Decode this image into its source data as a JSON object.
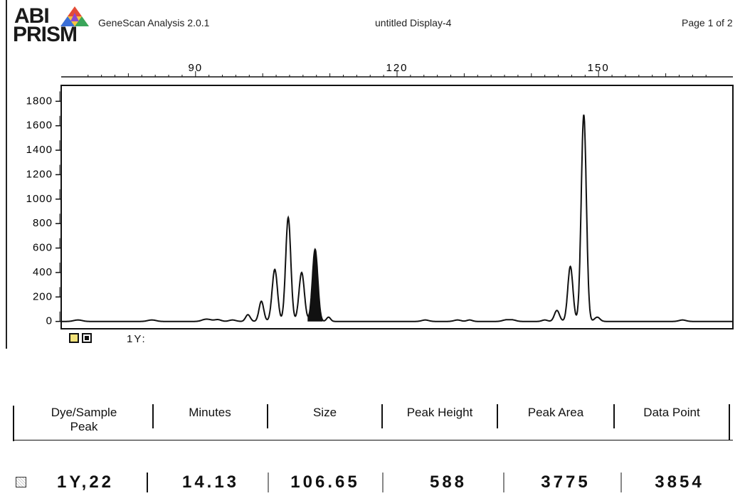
{
  "header": {
    "logo_line1": "ABI",
    "logo_line2": "PRISM",
    "app_name": "GeneScan Analysis 2.0.1",
    "display_title": "untitled Display-4",
    "page_indicator": "Page 1 of 2"
  },
  "chart_data": {
    "type": "line",
    "title": "",
    "xlabel": "",
    "ylabel": "",
    "x_ticks": [
      90,
      120,
      150
    ],
    "xlim": [
      70,
      170
    ],
    "y_ticks": [
      0,
      200,
      400,
      600,
      800,
      1000,
      1200,
      1400,
      1600,
      1800
    ],
    "ylim": [
      -60,
      1930
    ],
    "grid": false,
    "series": [
      {
        "name": "1Y",
        "color": "#111111",
        "peaks": [
          {
            "x": 72.5,
            "height": 12,
            "width": 0.6
          },
          {
            "x": 83.5,
            "height": 12,
            "width": 0.6
          },
          {
            "x": 91.3,
            "height": 12,
            "width": 0.5
          },
          {
            "x": 92.0,
            "height": 12,
            "width": 0.5
          },
          {
            "x": 93.3,
            "height": 15,
            "width": 0.5
          },
          {
            "x": 95.5,
            "height": 12,
            "width": 0.5
          },
          {
            "x": 97.8,
            "height": 55,
            "width": 0.35
          },
          {
            "x": 99.8,
            "height": 165,
            "width": 0.35
          },
          {
            "x": 101.8,
            "height": 425,
            "width": 0.4
          },
          {
            "x": 103.8,
            "height": 850,
            "width": 0.38
          },
          {
            "x": 105.8,
            "height": 400,
            "width": 0.4
          },
          {
            "x": 107.8,
            "height": 590,
            "width": 0.4
          },
          {
            "x": 109.8,
            "height": 35,
            "width": 0.3
          },
          {
            "x": 124.2,
            "height": 12,
            "width": 0.5
          },
          {
            "x": 129.0,
            "height": 12,
            "width": 0.5
          },
          {
            "x": 130.8,
            "height": 12,
            "width": 0.4
          },
          {
            "x": 136.2,
            "height": 12,
            "width": 0.5
          },
          {
            "x": 137.2,
            "height": 12,
            "width": 0.5
          },
          {
            "x": 142.0,
            "height": 12,
            "width": 0.4
          },
          {
            "x": 143.8,
            "height": 90,
            "width": 0.38
          },
          {
            "x": 145.8,
            "height": 450,
            "width": 0.38
          },
          {
            "x": 147.8,
            "height": 1690,
            "width": 0.38
          },
          {
            "x": 149.8,
            "height": 35,
            "width": 0.4
          },
          {
            "x": 162.5,
            "height": 12,
            "width": 0.5
          }
        ],
        "highlighted_peak": {
          "label": "1Y, 22",
          "size": 106.65,
          "peak_height": 588
        }
      }
    ]
  },
  "legend": {
    "dye_label": "1Y:",
    "swatch_colors": [
      "#f2e27a",
      "#111111"
    ]
  },
  "table": {
    "headers": [
      "Dye/Sample\nPeak",
      "Minutes",
      "Size",
      "Peak Height",
      "Peak Area",
      "Data Point"
    ],
    "rows": [
      {
        "dye_sample_peak": "1Y,22",
        "minutes": "14.13",
        "size": "106.65",
        "peak_height": "588",
        "peak_area": "3775",
        "data_point": "3854"
      }
    ]
  }
}
